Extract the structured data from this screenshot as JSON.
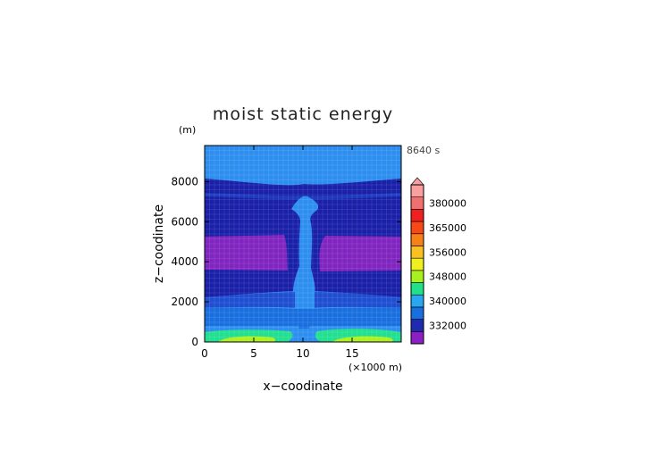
{
  "chart_data": {
    "type": "heatmap",
    "title": "moist static energy",
    "xlabel": "x−coodinate",
    "ylabel": "z−coodinate",
    "y_unit": "(m)",
    "x_unit": "(×1000 m)",
    "time_label": "8640 s",
    "xlim": [
      0,
      20
    ],
    "ylim": [
      0,
      9800
    ],
    "x_ticks": [
      0,
      5,
      10,
      15
    ],
    "y_ticks": [
      0,
      2000,
      4000,
      6000,
      8000
    ],
    "colorbar": {
      "labels": [
        "332000",
        "340000",
        "348000",
        "356000",
        "365000",
        "380000"
      ],
      "colors": [
        "#8a1fc4",
        "#1e2ab0",
        "#1a6fe0",
        "#28a8f0",
        "#22e08a",
        "#a8f020",
        "#f0f020",
        "#f8c020",
        "#f88018",
        "#f84818",
        "#f02020",
        "#f07070",
        "#f8a0a0"
      ],
      "extend_top_color": "#f8a0a0"
    },
    "colors": {
      "band_light": "#2d8ef0",
      "band_dark": "#1a20a8",
      "band_mid": "#1f4fd0",
      "band_purple": "#8025c0",
      "band_green": "#22e090",
      "band_yellow": "#b0f020"
    }
  }
}
